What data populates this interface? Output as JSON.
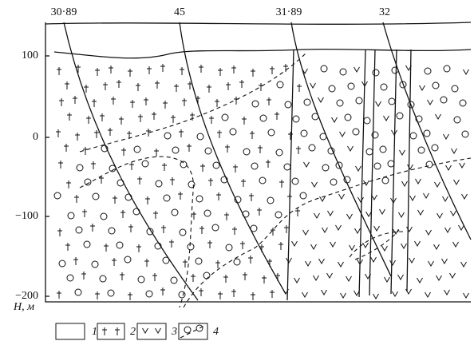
{
  "wells": [
    {
      "label": "30·89"
    },
    {
      "label": "45"
    },
    {
      "label": "31·89"
    },
    {
      "label": "32"
    }
  ],
  "axis": {
    "ticks": [
      "100",
      "0",
      "−100",
      "−200"
    ],
    "label": "H, м"
  },
  "legend": [
    {
      "label": "1"
    },
    {
      "label": "2"
    },
    {
      "label": "3"
    },
    {
      "label": "4"
    }
  ]
}
